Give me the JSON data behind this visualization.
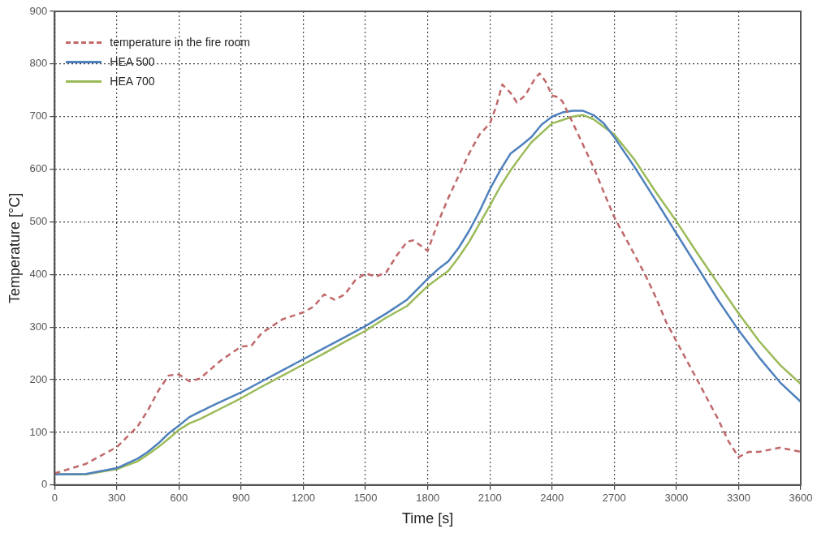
{
  "chart_data": {
    "type": "line",
    "xlabel": "Time [s]",
    "ylabel": "Temperature [°C]",
    "xlim": [
      0,
      3600
    ],
    "xticks": [
      0,
      300,
      600,
      900,
      1200,
      1500,
      1800,
      2100,
      2400,
      2700,
      3000,
      3300,
      3600
    ],
    "ylim": [
      0,
      900
    ],
    "yticks": [
      0,
      100,
      200,
      300,
      400,
      500,
      600,
      700,
      800,
      900
    ],
    "grid": true,
    "legend": "top left",
    "marker": "none",
    "series": [
      {
        "name": "temperature in the fire room",
        "color": "#c0686a",
        "line_style": "dashed",
        "x": [
          0,
          150,
          300,
          400,
          450,
          500,
          550,
          600,
          650,
          700,
          800,
          900,
          950,
          1000,
          1050,
          1100,
          1200,
          1250,
          1300,
          1350,
          1400,
          1450,
          1500,
          1550,
          1600,
          1650,
          1700,
          1730,
          1780,
          1800,
          1850,
          1900,
          1950,
          2000,
          2050,
          2100,
          2130,
          2160,
          2200,
          2230,
          2270,
          2320,
          2340,
          2370,
          2400,
          2430,
          2450,
          2500,
          2550,
          2600,
          2650,
          2700,
          2800,
          2850,
          2900,
          2950,
          3000,
          3100,
          3200,
          3250,
          3300,
          3350,
          3400,
          3500,
          3600
        ],
        "values": [
          22,
          40,
          72,
          111,
          142,
          179,
          208,
          210,
          197,
          202,
          236,
          263,
          265,
          289,
          302,
          315,
          328,
          339,
          362,
          352,
          362,
          389,
          402,
          396,
          404,
          436,
          462,
          465,
          451,
          445,
          499,
          546,
          588,
          630,
          666,
          687,
          719,
          761,
          745,
          727,
          740,
          774,
          782,
          766,
          740,
          737,
          729,
          688,
          646,
          604,
          556,
          509,
          436,
          399,
          357,
          310,
          273,
          200,
          126,
          84,
          53,
          63,
          63,
          71,
          63
        ]
      },
      {
        "name": "HEA 500",
        "color": "#4f81bd",
        "line_style": "solid",
        "x": [
          0,
          150,
          300,
          400,
          450,
          500,
          550,
          600,
          650,
          700,
          800,
          900,
          1000,
          1100,
          1200,
          1300,
          1400,
          1500,
          1600,
          1700,
          1800,
          1850,
          1900,
          1950,
          2000,
          2050,
          2100,
          2150,
          2200,
          2250,
          2300,
          2350,
          2400,
          2450,
          2500,
          2550,
          2600,
          2650,
          2700,
          2800,
          2900,
          3000,
          3100,
          3200,
          3300,
          3400,
          3500,
          3600
        ],
        "values": [
          20,
          21,
          32,
          50,
          63,
          79,
          98,
          113,
          129,
          139,
          158,
          176,
          197,
          218,
          239,
          260,
          281,
          302,
          326,
          352,
          392,
          410,
          425,
          451,
          483,
          520,
          562,
          598,
          630,
          645,
          661,
          685,
          700,
          708,
          711,
          711,
          703,
          687,
          661,
          603,
          541,
          478,
          415,
          352,
          294,
          242,
          195,
          158
        ]
      },
      {
        "name": "HEA 700",
        "color": "#9bbb59",
        "line_style": "solid",
        "x": [
          0,
          150,
          300,
          400,
          450,
          500,
          550,
          600,
          650,
          700,
          800,
          900,
          1000,
          1100,
          1200,
          1300,
          1400,
          1500,
          1600,
          1700,
          1800,
          1900,
          1950,
          2000,
          2100,
          2150,
          2200,
          2250,
          2300,
          2400,
          2500,
          2550,
          2600,
          2700,
          2800,
          2900,
          3000,
          3100,
          3200,
          3300,
          3400,
          3500,
          3600
        ],
        "values": [
          20,
          20,
          30,
          45,
          58,
          72,
          88,
          105,
          117,
          125,
          145,
          165,
          187,
          208,
          229,
          250,
          272,
          293,
          318,
          340,
          378,
          407,
          433,
          462,
          531,
          567,
          598,
          625,
          651,
          687,
          700,
          703,
          695,
          666,
          617,
          557,
          501,
          441,
          383,
          326,
          273,
          228,
          192
        ]
      }
    ]
  }
}
